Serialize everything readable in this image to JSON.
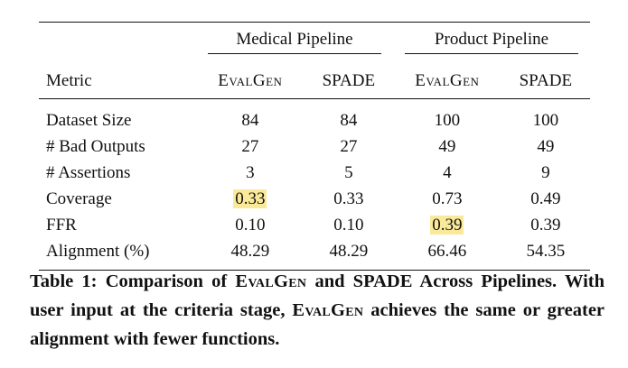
{
  "table": {
    "groups": [
      "Medical Pipeline",
      "Product Pipeline"
    ],
    "metric_header": "Metric",
    "columns": [
      "EvalGen",
      "SPADE",
      "EvalGen",
      "SPADE"
    ],
    "rows": [
      {
        "label": "Dataset Size",
        "values": [
          "84",
          "84",
          "100",
          "100"
        ]
      },
      {
        "label": "# Bad Outputs",
        "values": [
          "27",
          "27",
          "49",
          "49"
        ]
      },
      {
        "label": "# Assertions",
        "values": [
          "3",
          "5",
          "4",
          "9"
        ]
      },
      {
        "label": "Coverage",
        "values": [
          "0.33",
          "0.33",
          "0.73",
          "0.49"
        ]
      },
      {
        "label": "FFR",
        "values": [
          "0.10",
          "0.10",
          "0.39",
          "0.39"
        ]
      },
      {
        "label": "Alignment (%)",
        "values": [
          "48.29",
          "48.29",
          "66.46",
          "54.35"
        ]
      }
    ]
  },
  "caption": {
    "label": "Table 1:",
    "part1": "Comparison of",
    "evalgen": "EvalGen",
    "part2": "and SPADE Across Pipelines. With user input at the criteria stage,",
    "part3": "achieves the same or greater alignment with fewer functions."
  },
  "colors": {
    "highlight": "#fbe99a",
    "text": "#111111"
  }
}
